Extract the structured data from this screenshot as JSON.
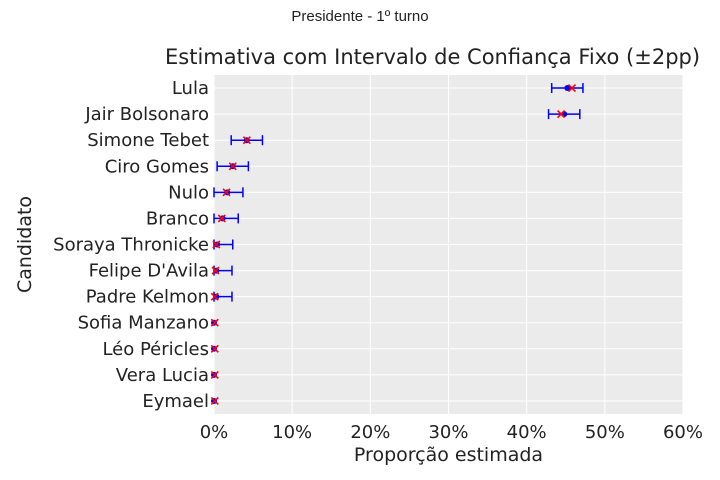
{
  "figure": {
    "suptitle": "Presidente - 1º turno"
  },
  "chart_data": {
    "type": "scatter",
    "title": "Estimativa com Intervalo de Confiança Fixo (±2pp)",
    "xlabel": "Proporção estimada",
    "ylabel": "Candidato",
    "xlim": [
      0,
      0.6
    ],
    "xticks": [
      0,
      0.1,
      0.2,
      0.3,
      0.4,
      0.5,
      0.6
    ],
    "xtick_labels": [
      "0%",
      "10%",
      "20%",
      "30%",
      "40%",
      "50%",
      "60%"
    ],
    "grid": true,
    "categories": [
      "Lula",
      "Jair Bolsonaro",
      "Simone Tebet",
      "Ciro Gomes",
      "Nulo",
      "Branco",
      "Soraya Thronicke",
      "Felipe D'Avila",
      "Padre Kelmon",
      "Sofia Manzano",
      "Léo Péricles",
      "Vera Lucia",
      "Eymael"
    ],
    "series": [
      {
        "marker": "dot",
        "color": "#0000ff",
        "values": [
          0.452,
          0.448,
          0.042,
          0.024,
          0.017,
          0.011,
          0.004,
          0.003,
          0.003,
          0.0,
          0.0,
          0.0,
          0.0
        ]
      },
      {
        "marker": "x",
        "color": "#ff0000",
        "values": [
          0.458,
          0.444,
          0.042,
          0.024,
          0.016,
          0.01,
          0.003,
          0.002,
          0.001,
          0.001,
          0.001,
          0.001,
          0.001
        ]
      }
    ],
    "error_bars": {
      "color": "#0000ff",
      "low": [
        0.432,
        0.428,
        0.022,
        0.004,
        0.0,
        0.0,
        0.0,
        0.0,
        0.0,
        null,
        null,
        null,
        null
      ],
      "high": [
        0.472,
        0.468,
        0.062,
        0.044,
        0.037,
        0.031,
        0.024,
        0.023,
        0.023,
        null,
        null,
        null,
        null
      ]
    }
  }
}
